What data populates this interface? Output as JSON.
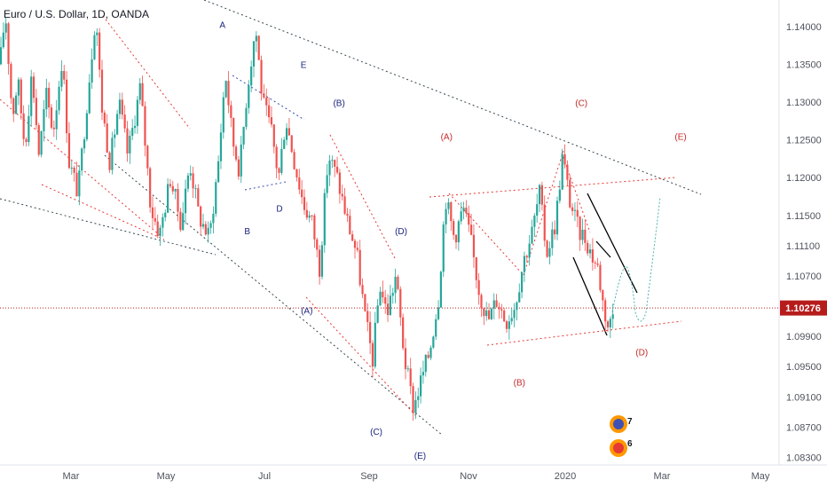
{
  "header": {
    "title": "Euro / U.S. Dollar, 1D, OANDA"
  },
  "colors": {
    "up": "#26a69a",
    "down": "#ef5350",
    "red_label": "#c62828",
    "blue_label": "#1a237e",
    "current_price_tag": "#b71c1c",
    "axis_text": "#50535e"
  },
  "chart_data": {
    "type": "candlestick",
    "symbol": "Euro / U.S. Dollar",
    "timeframe": "1D",
    "source": "OANDA",
    "x_ticks": [
      "Mar",
      "May",
      "Jul",
      "Sep",
      "Nov",
      "2020",
      "Mar",
      "May"
    ],
    "y_ticks": [
      "1.14000",
      "1.13500",
      "1.13000",
      "1.12500",
      "1.12000",
      "1.11500",
      "1.11100",
      "1.10700",
      "1.09900",
      "1.09500",
      "1.09100",
      "1.08700",
      "1.08300"
    ],
    "ylim": [
      1.082,
      1.1435
    ],
    "current_price": "1.10276",
    "current_price_value": 1.10276,
    "price_path": [
      [
        0,
        1.135
      ],
      [
        6,
        1.142
      ],
      [
        14,
        1.128
      ],
      [
        20,
        1.133
      ],
      [
        28,
        1.124
      ],
      [
        36,
        1.134
      ],
      [
        44,
        1.123
      ],
      [
        52,
        1.131
      ],
      [
        60,
        1.126
      ],
      [
        70,
        1.136
      ],
      [
        78,
        1.122
      ],
      [
        88,
        1.118
      ],
      [
        98,
        1.13
      ],
      [
        108,
        1.142
      ],
      [
        114,
        1.13
      ],
      [
        124,
        1.122
      ],
      [
        134,
        1.13
      ],
      [
        144,
        1.123
      ],
      [
        158,
        1.132
      ],
      [
        170,
        1.116
      ],
      [
        180,
        1.1125
      ],
      [
        192,
        1.12
      ],
      [
        204,
        1.114
      ],
      [
        214,
        1.122
      ],
      [
        224,
        1.115
      ],
      [
        236,
        1.112
      ],
      [
        246,
        1.122
      ],
      [
        254,
        1.134
      ],
      [
        262,
        1.125
      ],
      [
        270,
        1.121
      ],
      [
        278,
        1.131
      ],
      [
        288,
        1.14
      ],
      [
        296,
        1.13
      ],
      [
        306,
        1.126
      ],
      [
        314,
        1.12
      ],
      [
        322,
        1.128
      ],
      [
        332,
        1.122
      ],
      [
        342,
        1.1165
      ],
      [
        352,
        1.114
      ],
      [
        360,
        1.108
      ],
      [
        370,
        1.123
      ],
      [
        380,
        1.12
      ],
      [
        392,
        1.114
      ],
      [
        402,
        1.11
      ],
      [
        412,
        1.101
      ],
      [
        420,
        1.096
      ],
      [
        428,
        1.106
      ],
      [
        436,
        1.102
      ],
      [
        446,
        1.107
      ],
      [
        456,
        1.096
      ],
      [
        466,
        1.0895
      ],
      [
        474,
        1.093
      ],
      [
        484,
        1.097
      ],
      [
        494,
        1.104
      ],
      [
        502,
        1.1175
      ],
      [
        512,
        1.112
      ],
      [
        522,
        1.116
      ],
      [
        530,
        1.112
      ],
      [
        540,
        1.105
      ],
      [
        550,
        1.101
      ],
      [
        560,
        1.104
      ],
      [
        570,
        1.101
      ],
      [
        580,
        1.103
      ],
      [
        590,
        1.109
      ],
      [
        600,
        1.113
      ],
      [
        608,
        1.118
      ],
      [
        616,
        1.11
      ],
      [
        626,
        1.114
      ],
      [
        634,
        1.123
      ],
      [
        642,
        1.117
      ],
      [
        652,
        1.113
      ],
      [
        660,
        1.112
      ],
      [
        666,
        1.11
      ],
      [
        674,
        1.108
      ],
      [
        680,
        1.103
      ],
      [
        686,
        1.1
      ],
      [
        692,
        1.1027
      ]
    ],
    "wave_labels_red": [
      {
        "text": "(A)",
        "x": 0.54,
        "y": 1.125
      },
      {
        "text": "(C)",
        "x": 0.703,
        "y": 1.1295
      },
      {
        "text": "(E)",
        "x": 0.823,
        "y": 1.125
      },
      {
        "text": "(B)",
        "x": 0.628,
        "y": 1.0925
      },
      {
        "text": "(D)",
        "x": 0.776,
        "y": 1.0965
      }
    ],
    "wave_labels_blue": [
      {
        "text": "A",
        "x": 0.269,
        "y": 1.1398
      },
      {
        "text": "E",
        "x": 0.367,
        "y": 1.1345
      },
      {
        "text": "(B)",
        "x": 0.41,
        "y": 1.1295
      },
      {
        "text": "D",
        "x": 0.338,
        "y": 1.1155
      },
      {
        "text": "B",
        "x": 0.299,
        "y": 1.1125
      },
      {
        "text": "(D)",
        "x": 0.485,
        "y": 1.1125
      },
      {
        "text": "(A)",
        "x": 0.371,
        "y": 1.102
      },
      {
        "text": "(C)",
        "x": 0.455,
        "y": 1.086
      },
      {
        "text": "(E)",
        "x": 0.508,
        "y": 1.0828
      }
    ],
    "badge_numbers": [
      "7",
      "6"
    ]
  }
}
